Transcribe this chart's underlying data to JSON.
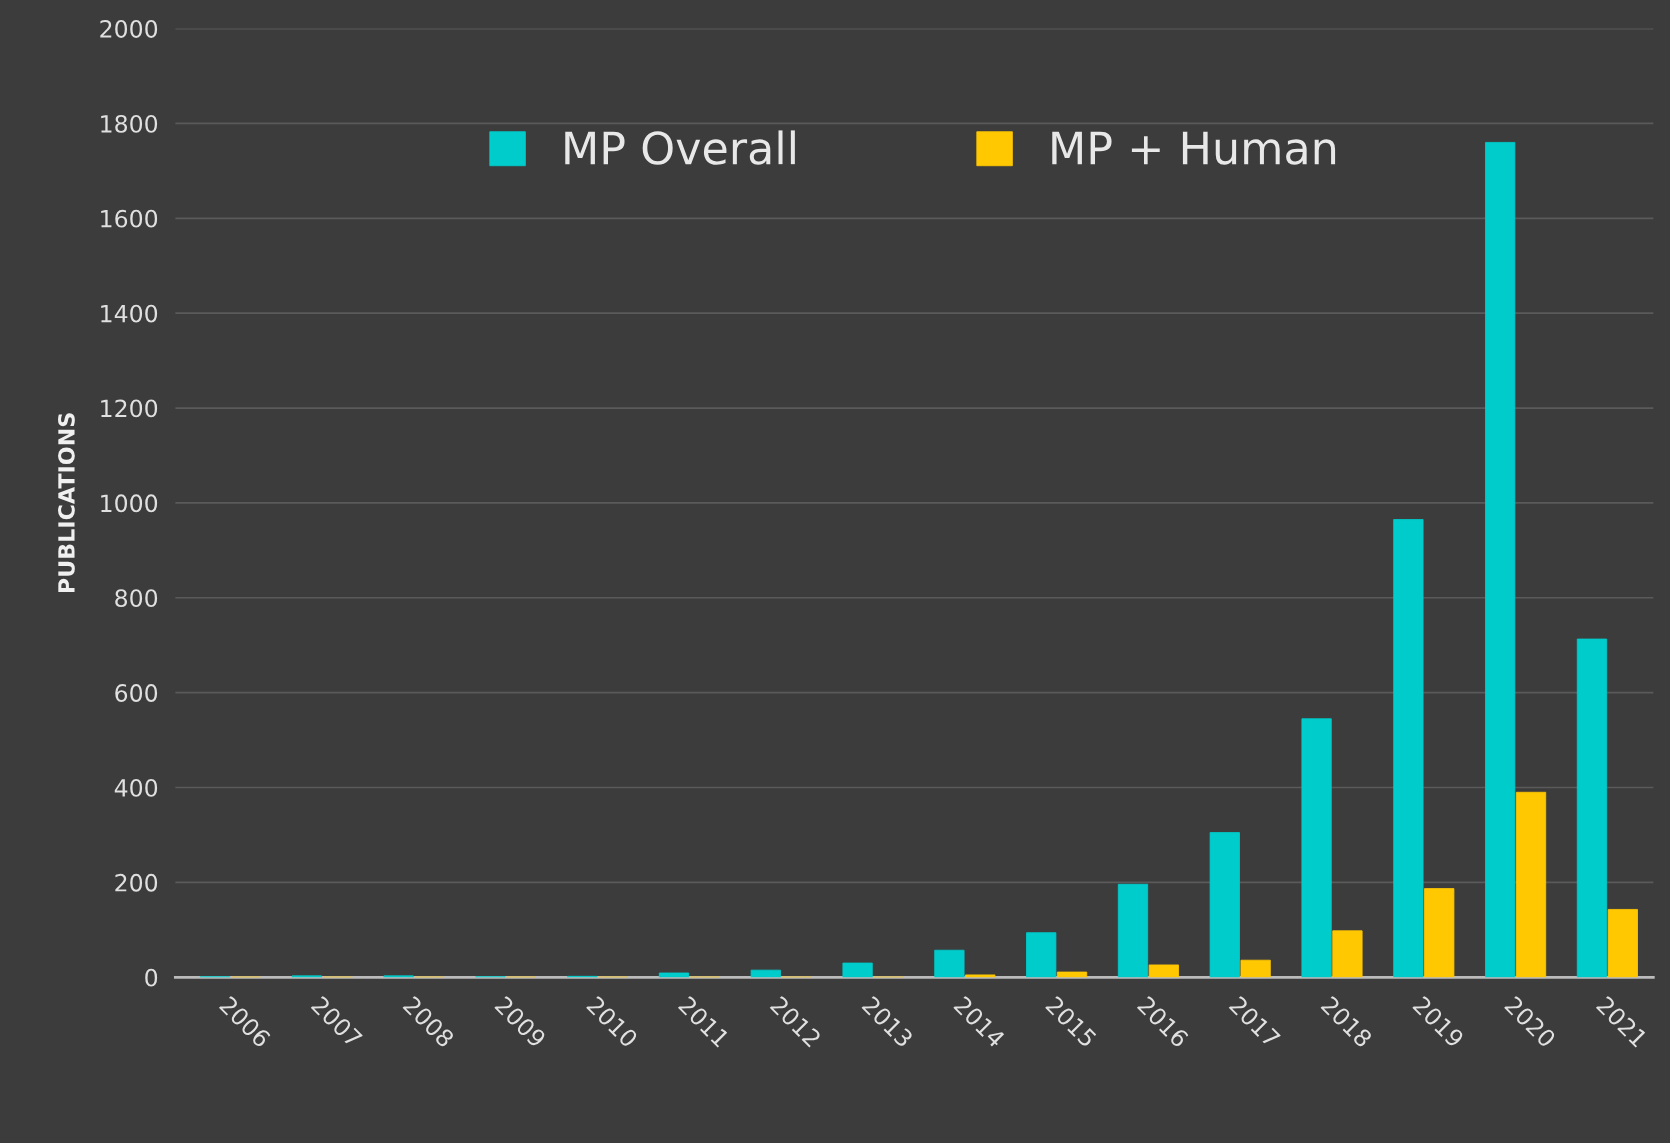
{
  "chart_data": {
    "type": "bar",
    "ylabel": "PUBLICATIONS",
    "categories": [
      "2006",
      "2007",
      "2008",
      "2009",
      "2010",
      "2011",
      "2012",
      "2013",
      "2014",
      "2015",
      "2016",
      "2017",
      "2018",
      "2019",
      "2020",
      "2021"
    ],
    "series": [
      {
        "name": "MP Overall",
        "color": "#00cccc",
        "values": [
          1,
          3,
          3,
          1,
          2,
          9,
          15,
          30,
          57,
          94,
          196,
          305,
          545,
          965,
          1760,
          713
        ]
      },
      {
        "name": "MP + Human",
        "color": "#ffc800",
        "values": [
          0,
          0,
          0,
          0,
          0,
          0,
          0,
          0,
          5,
          11,
          26,
          36,
          98,
          187,
          390,
          143
        ]
      }
    ],
    "ylim": [
      0,
      2000
    ],
    "yticks": [
      0,
      200,
      400,
      600,
      800,
      1000,
      1200,
      1400,
      1600,
      1800,
      2000
    ],
    "grid": "y",
    "legend": "top"
  }
}
